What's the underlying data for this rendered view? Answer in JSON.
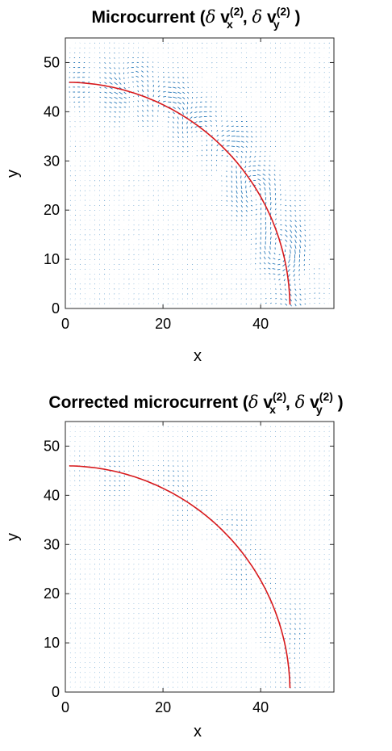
{
  "chart_data": [
    {
      "type": "quiver",
      "title_parts": {
        "prefix": "Microcurrent (",
        "delta": "δ",
        "vx": "v",
        "sub_x": "x",
        "sep": ", ",
        "vy": "v",
        "sub_y": "y",
        "sup": "(2)",
        "suffix": ")"
      },
      "xlabel": "x",
      "ylabel": "y",
      "xlim": [
        0,
        55
      ],
      "ylim": [
        0,
        55
      ],
      "xticks": [
        0,
        20,
        40
      ],
      "yticks": [
        0,
        10,
        20,
        30,
        40,
        50
      ],
      "grid": false,
      "interface_curve": {
        "shape": "circular arc",
        "center": [
          0,
          0
        ],
        "radius": 46,
        "color": "#d7191c"
      },
      "vector_color": "#2b7bba",
      "vector_grid_spacing": 1,
      "vector_field_description_strength": 1.0,
      "vortex_centers": [
        [
          14,
          46
        ],
        [
          22,
          41
        ],
        [
          30,
          37
        ],
        [
          36,
          32
        ],
        [
          40,
          24
        ],
        [
          44,
          12
        ],
        [
          45,
          5
        ]
      ]
    },
    {
      "type": "quiver",
      "title_parts": {
        "prefix": "Corrected microcurrent (",
        "delta": "δ",
        "vx": "v",
        "sub_x": "x",
        "sep": ", ",
        "vy": "v",
        "sub_y": "y",
        "sup": "(2)",
        "suffix": ")"
      },
      "xlabel": "x",
      "ylabel": "y",
      "xlim": [
        0,
        55
      ],
      "ylim": [
        0,
        55
      ],
      "xticks": [
        0,
        20,
        40
      ],
      "yticks": [
        0,
        10,
        20,
        30,
        40,
        50
      ],
      "grid": false,
      "interface_curve": {
        "shape": "circular arc",
        "center": [
          0,
          0
        ],
        "radius": 46,
        "color": "#d7191c"
      },
      "vector_color": "#2b7bba",
      "vector_grid_spacing": 1,
      "vector_field_description_strength": 0.35,
      "vortex_centers": [
        [
          14,
          46
        ],
        [
          22,
          41
        ],
        [
          30,
          37
        ],
        [
          36,
          32
        ],
        [
          40,
          24
        ],
        [
          44,
          12
        ],
        [
          45,
          5
        ]
      ]
    }
  ]
}
